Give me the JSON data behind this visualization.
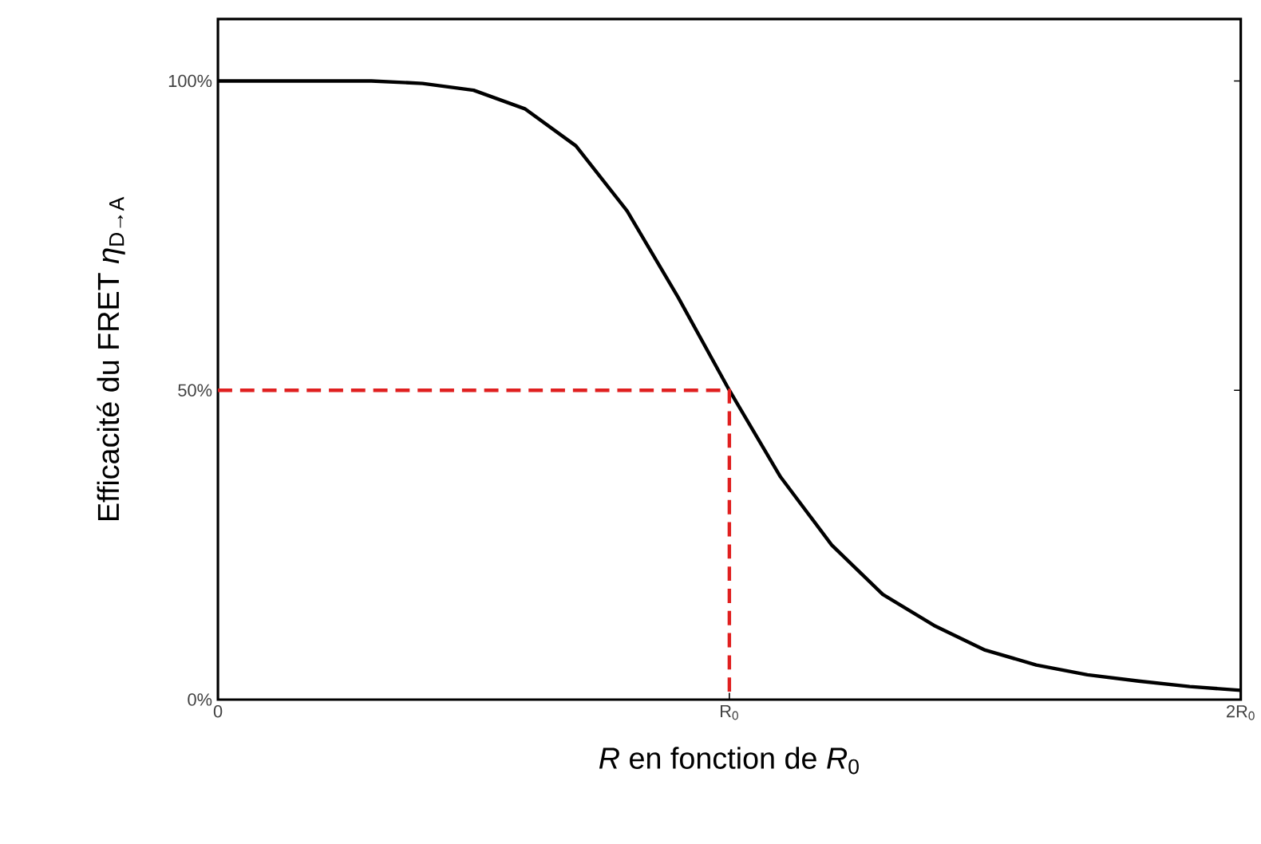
{
  "chart_data": {
    "type": "line",
    "xlabel": "*R* en fonction de *R*$_{0}$",
    "ylabel": "Efficacité du FRET *η*$_{D→A}$",
    "categories": [
      "0",
      null,
      null,
      null,
      null,
      null,
      null,
      null,
      null,
      null,
      "R$_{0}$",
      null,
      null,
      null,
      null,
      null,
      null,
      null,
      null,
      null,
      "2R$_{0}$"
    ],
    "ylim": [
      0,
      110
    ],
    "yticks": [
      {
        "value": 0,
        "label": "0%"
      },
      {
        "value": 50,
        "label": "50%"
      },
      {
        "value": 100,
        "label": "100%"
      }
    ],
    "grid": false,
    "marker": "none",
    "series": [
      {
        "color": "#000000",
        "line_style": "solid",
        "values": [
          100,
          100,
          100,
          100,
          99.6,
          98.5,
          95.5,
          89.5,
          79,
          65,
          50,
          36,
          25,
          17,
          12,
          8,
          5.6,
          4,
          3,
          2.1,
          1.5
        ]
      },
      {
        "color": "#e02020",
        "line_style": "dashed",
        "x": [
          "0",
          "R$_{0}$",
          "R$_{0}$"
        ],
        "values": [
          50,
          50,
          0
        ]
      }
    ]
  }
}
